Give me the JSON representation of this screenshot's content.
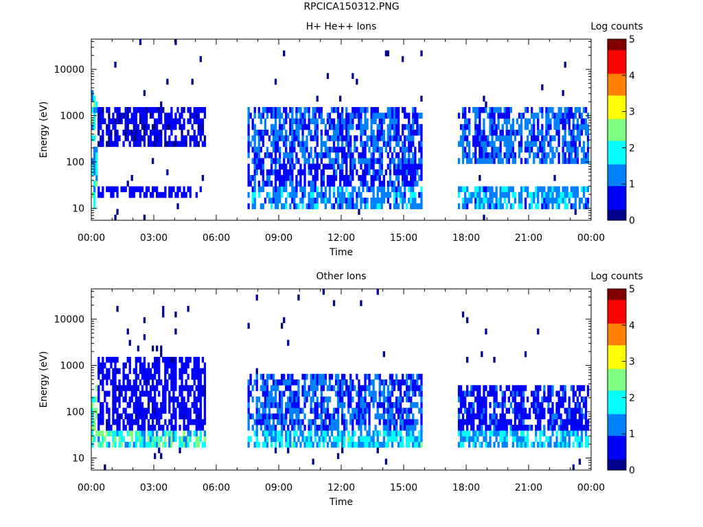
{
  "page_title": "RPCICA150312.PNG",
  "colors": {
    "colormap": [
      "#00008f",
      "#0000ff",
      "#0080ff",
      "#00ffff",
      "#80ff80",
      "#ffff00",
      "#ff8000",
      "#ff0000",
      "#800000"
    ],
    "axis": "#000000",
    "background": "#ffffff"
  },
  "chart_data": [
    {
      "type": "heatmap",
      "title": "H+ He++ Ions",
      "xlabel": "Time",
      "ylabel": "Energy (eV)",
      "x_ticks": [
        "00:00",
        "03:00",
        "06:00",
        "09:00",
        "12:00",
        "15:00",
        "18:00",
        "21:00",
        "00:00"
      ],
      "xlim_hours": [
        0,
        24
      ],
      "y_scale": "log",
      "ylim": [
        5.5,
        45000
      ],
      "y_ticks": [
        "10",
        "100",
        "1000",
        "10000"
      ],
      "y_tick_values": [
        10,
        100,
        1000,
        10000
      ],
      "colorbar": {
        "label": "Log counts",
        "range": [
          0,
          5
        ],
        "ticks": [
          "0",
          "1",
          "2",
          "3",
          "4",
          "5"
        ]
      },
      "data_gaps_hours": [
        [
          5.5,
          7.5
        ],
        [
          15.9,
          17.6
        ]
      ],
      "activity_segments": [
        {
          "start": 0.0,
          "end": 0.3,
          "e_low": 10,
          "e_high": 4000,
          "level": 1.8
        },
        {
          "start": 0.3,
          "end": 5.5,
          "e_low": 15,
          "e_high": 30,
          "level": 0.6
        },
        {
          "start": 0.3,
          "end": 5.5,
          "e_low": 200,
          "e_high": 1500,
          "level": 0.4
        },
        {
          "start": 7.5,
          "end": 15.9,
          "e_low": 10,
          "e_high": 30,
          "level": 1.3
        },
        {
          "start": 7.5,
          "end": 15.9,
          "e_low": 30,
          "e_high": 100,
          "level": 0.8
        },
        {
          "start": 7.5,
          "end": 15.9,
          "e_low": 100,
          "e_high": 1500,
          "level": 1.0
        },
        {
          "start": 17.6,
          "end": 23.9,
          "e_low": 10,
          "e_high": 30,
          "level": 1.4
        },
        {
          "start": 17.6,
          "end": 23.9,
          "e_low": 100,
          "e_high": 1500,
          "level": 1.1
        }
      ]
    },
    {
      "type": "heatmap",
      "title": "Other Ions",
      "xlabel": "Time",
      "ylabel": "Energy (eV)",
      "x_ticks": [
        "00:00",
        "03:00",
        "06:00",
        "09:00",
        "12:00",
        "15:00",
        "18:00",
        "21:00",
        "00:00"
      ],
      "xlim_hours": [
        0,
        24
      ],
      "y_scale": "log",
      "ylim": [
        5.5,
        45000
      ],
      "y_ticks": [
        "10",
        "100",
        "1000",
        "10000"
      ],
      "y_tick_values": [
        10,
        100,
        1000,
        10000
      ],
      "colorbar": {
        "label": "Log counts",
        "range": [
          0,
          5
        ],
        "ticks": [
          "0",
          "1",
          "2",
          "3",
          "4",
          "5"
        ]
      },
      "data_gaps_hours": [
        [
          5.5,
          7.5
        ],
        [
          15.9,
          17.6
        ]
      ],
      "activity_segments": [
        {
          "start": 0.0,
          "end": 0.3,
          "e_low": 20,
          "e_high": 400,
          "level": 2.3
        },
        {
          "start": 0.0,
          "end": 5.5,
          "e_low": 15,
          "e_high": 35,
          "level": 2.0
        },
        {
          "start": 0.3,
          "end": 5.5,
          "e_low": 35,
          "e_high": 1500,
          "level": 0.5
        },
        {
          "start": 7.5,
          "end": 15.9,
          "e_low": 15,
          "e_high": 35,
          "level": 1.7
        },
        {
          "start": 7.5,
          "end": 15.9,
          "e_low": 35,
          "e_high": 600,
          "level": 1.0
        },
        {
          "start": 17.6,
          "end": 23.9,
          "e_low": 15,
          "e_high": 35,
          "level": 1.6
        },
        {
          "start": 17.6,
          "end": 23.9,
          "e_low": 35,
          "e_high": 400,
          "level": 0.8
        }
      ]
    }
  ]
}
